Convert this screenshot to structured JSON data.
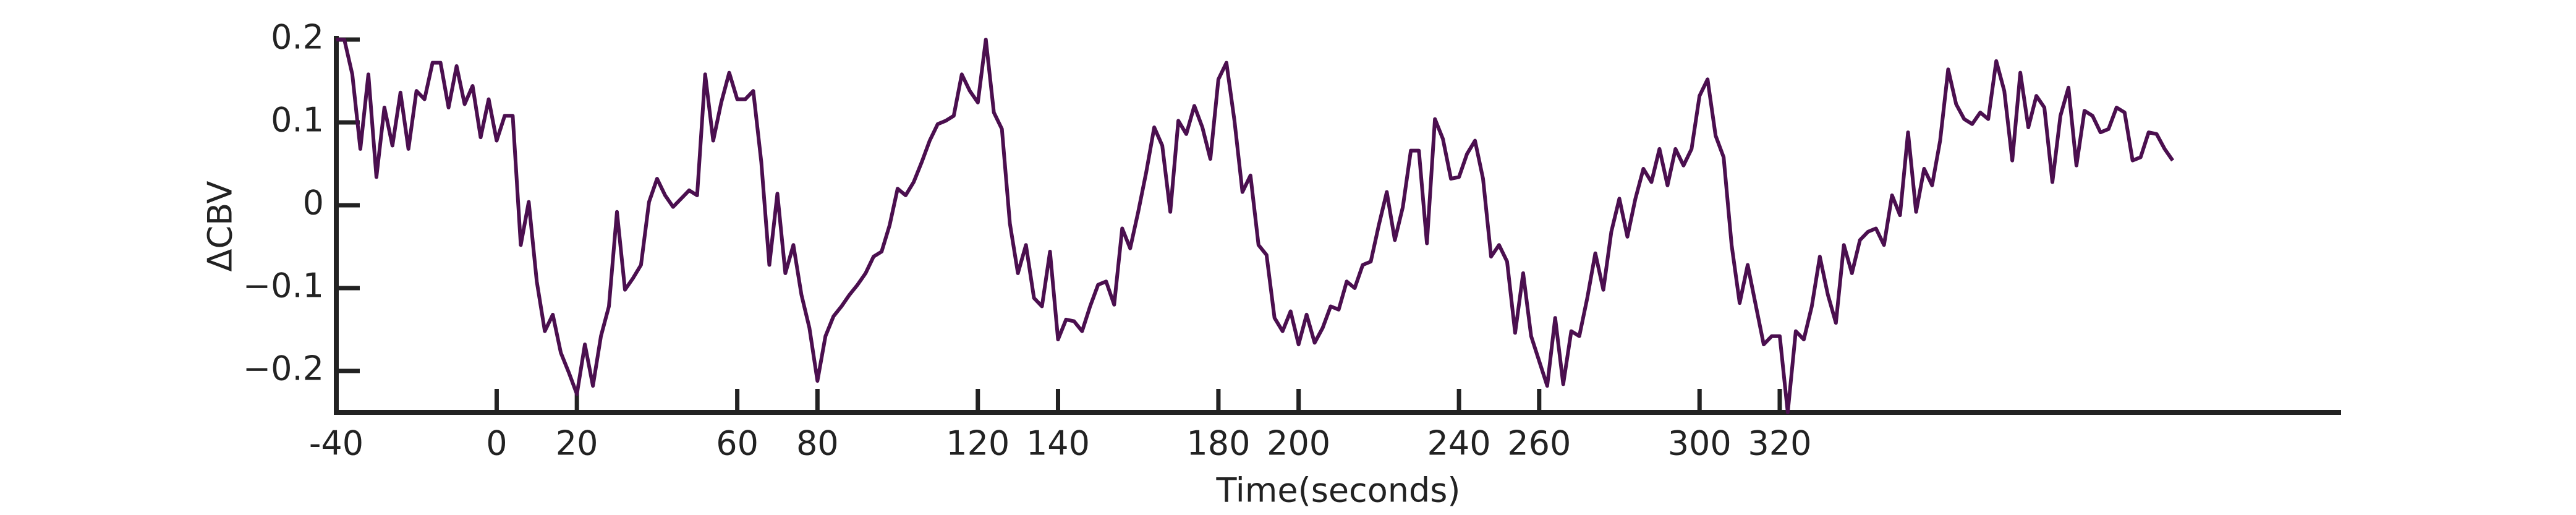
{
  "chart_data": {
    "type": "line",
    "x_label": "Time(seconds)",
    "y_label": "ΔCBV",
    "color": "#4b0f4f",
    "x": [
      -40,
      -38,
      -36,
      -34,
      -32,
      -30,
      -28,
      -26,
      -24,
      -22,
      -20,
      -18,
      -16,
      -14,
      -12,
      -10,
      -8,
      -6,
      -4,
      -2,
      0,
      2,
      4,
      6,
      8,
      10,
      12,
      14,
      16,
      18,
      20,
      22,
      24,
      26,
      28,
      30,
      32,
      34,
      36,
      38,
      40,
      42,
      44,
      46,
      48,
      50,
      52,
      54,
      56,
      58,
      60,
      62,
      64,
      66,
      68,
      70,
      72,
      74,
      76,
      78,
      80,
      82,
      84,
      86,
      88,
      90,
      92,
      94,
      96,
      98,
      100,
      102,
      104,
      106,
      108,
      110,
      112,
      114,
      116,
      118,
      120,
      122,
      124,
      126,
      128,
      130,
      132,
      134,
      136,
      138,
      140,
      142,
      144,
      146,
      148,
      150,
      152,
      154,
      156,
      158,
      160,
      162,
      164,
      166,
      168,
      170,
      172,
      174,
      176,
      178,
      180,
      182,
      184,
      186,
      188,
      190,
      192,
      194,
      196,
      198,
      200,
      202,
      204,
      206,
      208,
      210,
      212,
      214,
      216,
      218,
      220,
      222,
      224,
      226,
      228,
      230,
      232,
      234,
      236,
      238,
      240,
      242,
      244,
      246,
      248,
      250,
      252,
      254,
      256,
      258,
      260,
      262,
      264,
      266,
      268,
      270,
      272,
      274,
      276,
      278,
      280,
      282,
      284,
      286,
      288,
      290,
      292,
      294,
      296,
      298,
      300,
      302,
      304,
      306,
      308,
      310,
      312,
      314,
      316,
      318,
      320,
      322,
      324,
      326,
      328,
      330,
      332,
      334,
      336,
      338,
      340,
      342,
      344,
      346,
      348,
      350,
      352,
      354,
      356,
      358,
      360,
      362,
      364,
      366,
      368,
      370,
      372,
      374,
      376,
      378,
      380,
      382,
      384,
      386,
      388,
      390,
      392,
      394,
      396,
      398,
      400,
      402,
      404,
      406,
      408,
      410,
      412,
      414,
      416,
      418
    ],
    "values": [
      0.2,
      0.2,
      0.158,
      0.068,
      0.158,
      0.034,
      0.118,
      0.072,
      0.136,
      0.068,
      0.138,
      0.128,
      0.172,
      0.172,
      0.118,
      0.168,
      0.122,
      0.144,
      0.082,
      0.128,
      0.078,
      0.108,
      0.108,
      -0.048,
      0.004,
      -0.092,
      -0.152,
      -0.132,
      -0.178,
      -0.202,
      -0.228,
      -0.168,
      -0.218,
      -0.158,
      -0.122,
      -0.008,
      -0.102,
      -0.088,
      -0.072,
      0.004,
      0.032,
      0.012,
      -0.002,
      0.008,
      0.018,
      0.012,
      0.158,
      0.078,
      0.124,
      0.16,
      0.128,
      0.128,
      0.138,
      0.052,
      -0.072,
      0.014,
      -0.082,
      -0.048,
      -0.108,
      -0.148,
      -0.212,
      -0.158,
      -0.134,
      -0.122,
      -0.108,
      -0.096,
      -0.082,
      -0.062,
      -0.056,
      -0.024,
      0.02,
      0.012,
      0.028,
      0.052,
      0.078,
      0.098,
      0.102,
      0.108,
      0.158,
      0.138,
      0.124,
      0.2,
      0.112,
      0.092,
      -0.022,
      -0.082,
      -0.048,
      -0.112,
      -0.122,
      -0.056,
      -0.162,
      -0.138,
      -0.14,
      -0.152,
      -0.122,
      -0.096,
      -0.092,
      -0.12,
      -0.028,
      -0.052,
      -0.008,
      0.04,
      0.094,
      0.072,
      -0.008,
      0.102,
      0.086,
      0.12,
      0.094,
      0.056,
      0.152,
      0.172,
      0.102,
      0.016,
      0.036,
      -0.048,
      -0.06,
      -0.136,
      -0.152,
      -0.128,
      -0.168,
      -0.132,
      -0.166,
      -0.148,
      -0.122,
      -0.126,
      -0.092,
      -0.1,
      -0.072,
      -0.068,
      -0.024,
      0.016,
      -0.042,
      -0.002,
      0.066,
      0.066,
      -0.046,
      0.104,
      0.08,
      0.032,
      0.034,
      0.062,
      0.078,
      0.032,
      -0.062,
      -0.048,
      -0.068,
      -0.154,
      -0.082,
      -0.158,
      -0.188,
      -0.218,
      -0.136,
      -0.216,
      -0.152,
      -0.158,
      -0.112,
      -0.058,
      -0.102,
      -0.032,
      0.008,
      -0.038,
      0.008,
      0.044,
      0.028,
      0.068,
      0.024,
      0.068,
      0.048,
      0.068,
      0.132,
      0.152,
      0.084,
      0.058,
      -0.048,
      -0.118,
      -0.072,
      -0.12,
      -0.168,
      -0.158,
      -0.158,
      -0.25,
      -0.152,
      -0.162,
      -0.122,
      -0.062,
      -0.108,
      -0.142,
      -0.048,
      -0.082,
      -0.042,
      -0.032,
      -0.028,
      -0.048,
      0.012,
      -0.012,
      0.088,
      -0.008,
      0.044,
      0.024,
      0.078,
      0.164,
      0.122,
      0.104,
      0.098,
      0.112,
      0.104,
      0.174,
      0.138,
      0.054,
      0.16,
      0.094,
      0.132,
      0.118,
      0.028,
      0.108,
      0.142,
      0.048,
      0.114,
      0.108,
      0.088,
      0.092,
      0.118,
      0.112,
      0.054,
      0.058,
      0.088,
      0.086,
      0.068,
      0.054
    ],
    "xlim": [
      -40,
      460
    ],
    "xticks": [
      -40,
      0,
      20,
      60,
      80,
      120,
      140,
      180,
      200,
      240,
      260,
      300,
      320
    ],
    "ylim": [
      -0.25,
      0.2
    ],
    "yticks": [
      {
        "value": -0.2,
        "label": "−0.2"
      },
      {
        "value": -0.1,
        "label": "−0.1"
      },
      0,
      0.1,
      0.2
    ]
  }
}
